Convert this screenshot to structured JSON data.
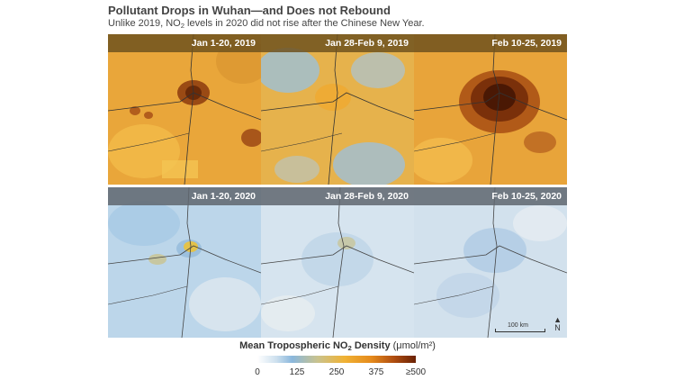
{
  "title": "Pollutant Drops in Wuhan—and Does not Rebound",
  "subtitle": {
    "before": "Unlike 2019, NO",
    "sub": "2",
    "after": " levels in 2020 did not rise after the Chinese New Year."
  },
  "panels": {
    "row_2019": [
      "Jan 1-20, 2019",
      "Jan 28-Feb 9, 2019",
      "Feb 10-25, 2019"
    ],
    "row_2020": [
      "Jan 1-20, 2020",
      "Jan 28-Feb 9, 2020",
      "Feb 10-25, 2020"
    ]
  },
  "scale_bar_label": "100 km",
  "north_label": "N",
  "colorbar": {
    "title_bold_before": "Mean Tropospheric NO",
    "title_sub": "2",
    "title_bold_after": " Density",
    "units": " (μmol/m²)",
    "ticks": [
      "0",
      "125",
      "250",
      "375",
      "≥500"
    ]
  },
  "colors": {
    "low": "#b8d4ea",
    "mid": "#f0b234",
    "high": "#6a2204",
    "header_2019": "#6e521e",
    "header_2020": "#5f666e"
  }
}
